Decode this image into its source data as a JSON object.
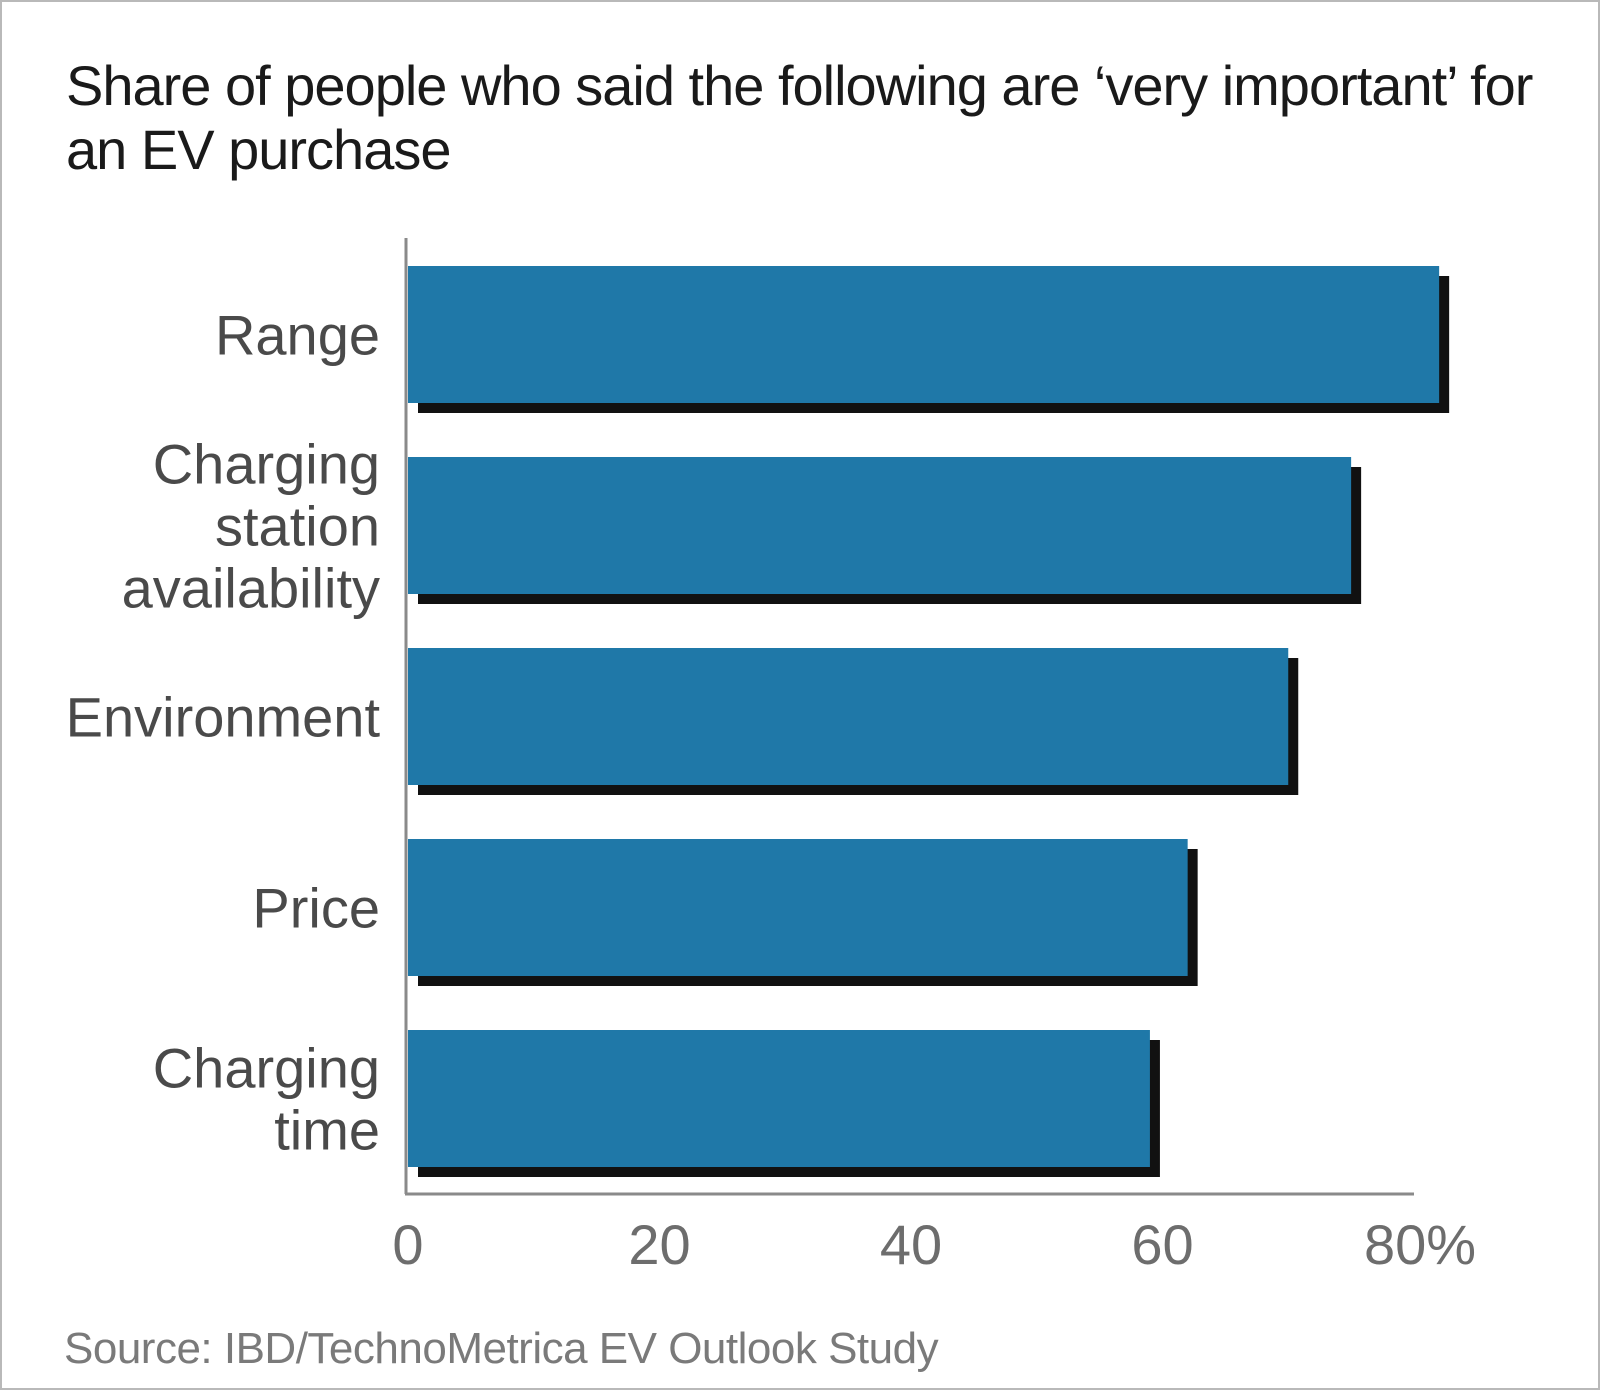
{
  "chart_data": {
    "type": "bar",
    "orientation": "horizontal",
    "title": "Share of people who said the following are ‘very important’ for an EV purchase",
    "categories": [
      [
        "Range"
      ],
      [
        "Charging",
        "station",
        "availability"
      ],
      [
        "Environment"
      ],
      [
        "Price"
      ],
      [
        "Charging",
        "time"
      ]
    ],
    "values": [
      82,
      75,
      70,
      62,
      59
    ],
    "xlim": [
      0,
      80
    ],
    "ticks": [
      "0",
      "20",
      "40",
      "60",
      "80%"
    ],
    "xlabel": "",
    "ylabel": "",
    "grid": false,
    "legend": "none",
    "colors": {
      "bar": "#1f78a8",
      "shadow": "#111111",
      "axis": "#8a8a8a"
    },
    "source": "Source: IBD/TechnoMetrica EV Outlook Study"
  }
}
